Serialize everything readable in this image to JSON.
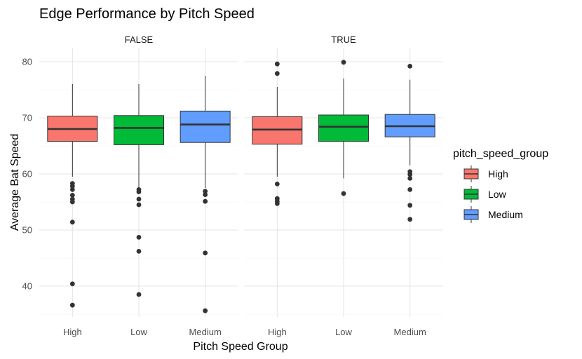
{
  "chart_data": {
    "type": "boxplot",
    "title": "Edge Performance by Pitch Speed",
    "xlabel": "Pitch Speed Group",
    "ylabel": "Average Bat Speed",
    "ylim": [
      34.5,
      82.5
    ],
    "yticks": [
      40,
      50,
      60,
      70,
      80
    ],
    "grid": true,
    "legend_position": "right",
    "legend_title": "pitch_speed_group",
    "categories": [
      "High",
      "Low",
      "Medium"
    ],
    "colors": {
      "High": "#F8766D",
      "Low": "#00BA38",
      "Medium": "#619CFF"
    },
    "facets": [
      {
        "label": "FALSE",
        "boxes": [
          {
            "group": "High",
            "whisker_low": 59.5,
            "q1": 65.8,
            "median": 68.0,
            "q3": 70.3,
            "whisker_high": 76.0,
            "outliers": [
              58.3,
              57.8,
              57.2,
              56.2,
              55.5,
              55.0,
              51.4,
              40.4,
              36.6
            ]
          },
          {
            "group": "Low",
            "whisker_low": 57.5,
            "q1": 65.2,
            "median": 68.2,
            "q3": 70.4,
            "whisker_high": 76.0,
            "outliers": [
              57.2,
              56.8,
              55.5,
              54.5,
              48.7,
              46.2,
              38.5
            ]
          },
          {
            "group": "Medium",
            "whisker_low": 57.5,
            "q1": 65.6,
            "median": 68.8,
            "q3": 71.2,
            "whisker_high": 77.5,
            "outliers": [
              56.9,
              56.3,
              55.1,
              45.9,
              35.6
            ]
          }
        ]
      },
      {
        "label": "TRUE",
        "boxes": [
          {
            "group": "High",
            "whisker_low": 59.5,
            "q1": 65.3,
            "median": 67.9,
            "q3": 70.2,
            "whisker_high": 75.5,
            "outliers": [
              79.6,
              77.9,
              58.2,
              55.6,
              55.1,
              54.7
            ]
          },
          {
            "group": "Low",
            "whisker_low": 59.2,
            "q1": 65.8,
            "median": 68.4,
            "q3": 70.5,
            "whisker_high": 77.0,
            "outliers": [
              79.9,
              56.5
            ]
          },
          {
            "group": "Medium",
            "whisker_low": 61.5,
            "q1": 66.6,
            "median": 68.5,
            "q3": 70.6,
            "whisker_high": 76.8,
            "outliers": [
              79.2,
              60.4,
              59.9,
              59.2,
              57.2,
              54.4,
              51.9
            ]
          }
        ]
      }
    ]
  }
}
